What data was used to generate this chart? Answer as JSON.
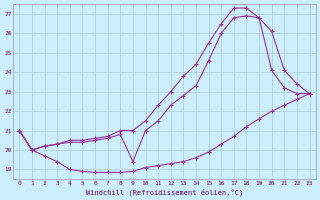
{
  "xlabel": "Windchill (Refroidissement éolien,°C)",
  "background_color": "#cceeff",
  "line_color": "#993399",
  "grid_color": "#aacccc",
  "xlim": [
    -0.5,
    23.5
  ],
  "ylim": [
    18.5,
    27.5
  ],
  "xticks": [
    0,
    1,
    2,
    3,
    4,
    5,
    6,
    7,
    8,
    9,
    10,
    11,
    12,
    13,
    14,
    15,
    16,
    17,
    18,
    19,
    20,
    21,
    22,
    23
  ],
  "yticks": [
    19,
    20,
    21,
    22,
    23,
    24,
    25,
    26,
    27
  ],
  "series": [
    {
      "x": [
        0,
        1,
        2,
        3,
        4,
        5,
        6,
        7,
        8,
        9,
        10,
        11,
        12,
        13,
        14,
        15,
        16,
        17,
        18,
        19,
        20,
        21,
        22,
        23
      ],
      "y": [
        21.0,
        20.0,
        20.2,
        20.3,
        20.5,
        20.5,
        20.6,
        20.7,
        21.0,
        21.0,
        21.5,
        22.3,
        23.0,
        23.8,
        24.4,
        25.5,
        26.5,
        27.3,
        27.3,
        26.8,
        24.1,
        23.2,
        22.9,
        22.9
      ]
    },
    {
      "x": [
        0,
        1,
        2,
        3,
        4,
        5,
        6,
        7,
        8,
        9,
        10,
        11,
        12,
        13,
        14,
        15,
        16,
        17,
        18,
        19,
        20,
        21,
        22,
        23
      ],
      "y": [
        21.0,
        20.0,
        19.7,
        19.4,
        19.0,
        18.9,
        18.85,
        18.85,
        18.85,
        18.9,
        19.1,
        19.2,
        19.3,
        19.4,
        19.6,
        19.9,
        20.3,
        20.7,
        21.2,
        21.6,
        22.0,
        22.3,
        22.6,
        22.9
      ]
    },
    {
      "x": [
        0,
        1,
        2,
        3,
        4,
        5,
        6,
        7,
        8,
        9,
        10,
        11,
        12,
        13,
        14,
        15,
        16,
        17,
        18,
        19,
        20,
        21,
        22,
        23
      ],
      "y": [
        21.0,
        20.0,
        20.2,
        20.3,
        20.4,
        20.4,
        20.5,
        20.6,
        20.8,
        19.4,
        21.0,
        21.5,
        22.3,
        22.8,
        23.3,
        24.6,
        26.0,
        26.8,
        26.9,
        26.8,
        26.1,
        24.1,
        23.4,
        22.9
      ]
    }
  ]
}
